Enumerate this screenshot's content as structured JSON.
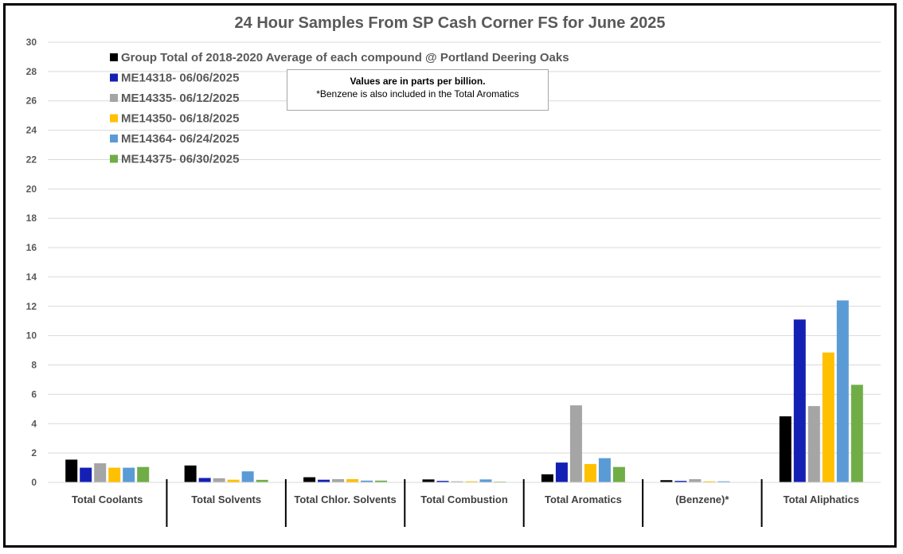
{
  "chart_data": {
    "type": "bar",
    "title": "24 Hour Samples From SP Cash Corner FS for June 2025",
    "xlabel": "",
    "ylabel": "",
    "ylim": [
      0,
      30
    ],
    "yticks": [
      0,
      2,
      4,
      6,
      8,
      10,
      12,
      14,
      16,
      18,
      20,
      22,
      24,
      26,
      28,
      30
    ],
    "grid": true,
    "legend_position": "top-left",
    "categories": [
      "Total Coolants",
      "Total Solvents",
      "Total Chlor. Solvents",
      "Total Combustion",
      "Total Aromatics",
      "(Benzene)*",
      "Total Aliphatics"
    ],
    "series": [
      {
        "name": "Group Total of 2018-2020 Average of each compound @ Portland Deering Oaks",
        "color": "#000000",
        "values": [
          1.55,
          1.15,
          0.35,
          0.2,
          0.55,
          0.15,
          4.5
        ]
      },
      {
        "name": "ME14318- 06/06/2025",
        "color": "#1420b4",
        "values": [
          1.0,
          0.3,
          0.18,
          0.1,
          1.35,
          0.1,
          11.1
        ]
      },
      {
        "name": "ME14335- 06/12/2025",
        "color": "#a5a5a5",
        "values": [
          1.3,
          0.28,
          0.22,
          0.07,
          5.25,
          0.22,
          5.2
        ]
      },
      {
        "name": "ME14350- 06/18/2025",
        "color": "#ffc000",
        "values": [
          1.0,
          0.18,
          0.22,
          0.07,
          1.25,
          0.07,
          8.85
        ]
      },
      {
        "name": "ME14364- 06/24/2025",
        "color": "#5b9bd5",
        "values": [
          1.0,
          0.75,
          0.12,
          0.2,
          1.65,
          0.07,
          12.4
        ]
      },
      {
        "name": "ME14375- 06/30/2025",
        "color": "#70ad47",
        "values": [
          1.05,
          0.17,
          0.12,
          0.05,
          1.05,
          0.0,
          6.65
        ]
      }
    ]
  },
  "note": {
    "line1": "Values are in parts per billion.",
    "line2": "*Benzene is also included in the Total Aromatics"
  }
}
